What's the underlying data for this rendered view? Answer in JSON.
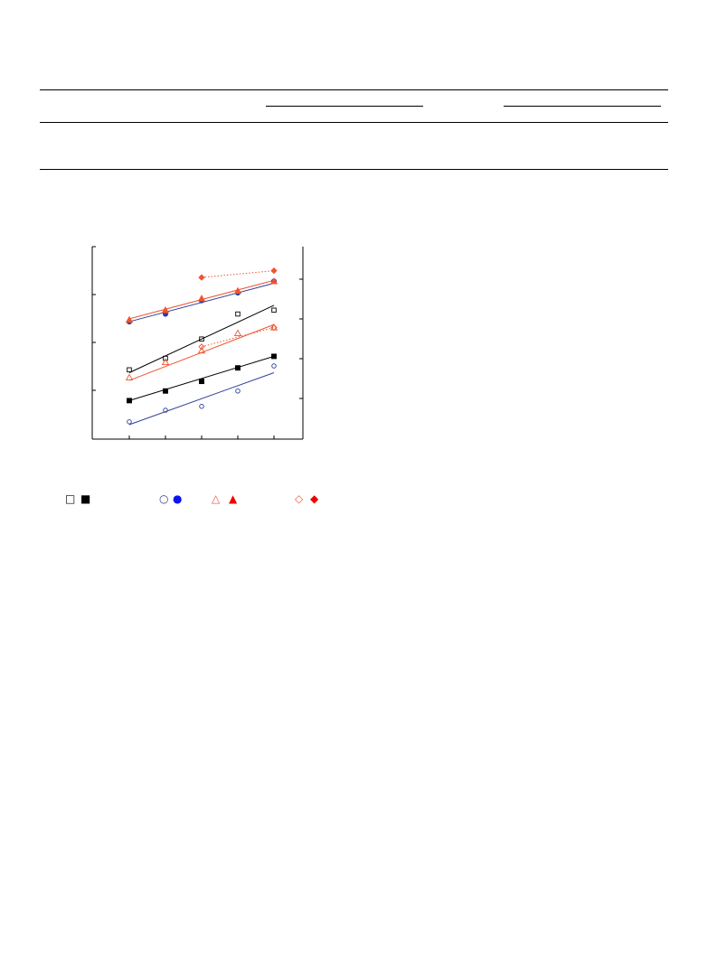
{
  "chart_data": {
    "type": "scatter",
    "x": [
      1,
      2,
      3,
      4,
      5
    ],
    "y_left_ticks": 4,
    "y_right_ticks": 4,
    "x_ticks": 6,
    "series": [
      {
        "marker": "open-square",
        "color": "#000000",
        "axis": "right",
        "points": [
          [
            1,
            0.36
          ],
          [
            2,
            0.42
          ],
          [
            3,
            0.52
          ],
          [
            4,
            0.65
          ],
          [
            5,
            0.67
          ]
        ],
        "fit": [
          [
            1,
            0.345
          ],
          [
            5,
            0.695
          ]
        ],
        "fit_style": "solid"
      },
      {
        "marker": "filled-square",
        "color": "#000000",
        "axis": "right",
        "points": [
          [
            1,
            0.2
          ],
          [
            2,
            0.25
          ],
          [
            3,
            0.3
          ],
          [
            4,
            0.37
          ],
          [
            5,
            0.43
          ]
        ],
        "fit": [
          [
            1,
            0.2
          ],
          [
            5,
            0.43
          ]
        ],
        "fit_style": "solid"
      },
      {
        "marker": "open-circle",
        "color": "#2e3e9a",
        "axis": "right",
        "points": [
          [
            1,
            0.09
          ],
          [
            2,
            0.15
          ],
          [
            3,
            0.17
          ],
          [
            4,
            0.25
          ],
          [
            5,
            0.38
          ]
        ],
        "fit": [
          [
            1,
            0.075
          ],
          [
            5,
            0.345
          ]
        ],
        "fit_style": "solid"
      },
      {
        "marker": "filled-circle",
        "color": "#2e3e9a",
        "axis": "right",
        "points": [
          [
            1,
            0.61
          ],
          [
            2,
            0.65
          ],
          [
            3,
            0.72
          ],
          [
            4,
            0.76
          ],
          [
            5,
            0.82
          ]
        ],
        "fit": [
          [
            1,
            0.61
          ],
          [
            5,
            0.81
          ]
        ],
        "fit_style": "solid"
      },
      {
        "marker": "open-triangle",
        "color": "#ef5430",
        "axis": "right",
        "points": [
          [
            1,
            0.32
          ],
          [
            2,
            0.4
          ],
          [
            3,
            0.46
          ],
          [
            4,
            0.55
          ],
          [
            5,
            0.58
          ]
        ],
        "fit": [
          [
            1,
            0.305
          ],
          [
            5,
            0.595
          ]
        ],
        "fit_style": "solid"
      },
      {
        "marker": "filled-triangle",
        "color": "#ef5430",
        "axis": "right",
        "points": [
          [
            1,
            0.62
          ],
          [
            2,
            0.67
          ],
          [
            3,
            0.73
          ],
          [
            4,
            0.77
          ],
          [
            5,
            0.82
          ]
        ],
        "fit": [
          [
            1,
            0.625
          ],
          [
            5,
            0.825
          ]
        ],
        "fit_style": "solid"
      },
      {
        "marker": "open-diamond",
        "color": "#ef5430",
        "axis": "right",
        "points": [
          [
            3,
            0.48
          ],
          [
            5,
            0.58
          ]
        ],
        "fit": [
          [
            3,
            0.48
          ],
          [
            5,
            0.58
          ]
        ],
        "fit_style": "dotted"
      },
      {
        "marker": "filled-diamond",
        "color": "#ef5430",
        "axis": "right",
        "points": [
          [
            3,
            0.84
          ],
          [
            5,
            0.875
          ]
        ],
        "fit": [
          [
            3,
            0.84
          ],
          [
            5,
            0.875
          ]
        ],
        "fit_style": "dotted"
      }
    ]
  },
  "legend": [
    {
      "open": "open-square-legend",
      "filled": "filled-square-legend",
      "open_glyph": "□",
      "filled_glyph": "■",
      "color": "#000000",
      "open_color": "#000000"
    },
    {
      "open": "open-circle-legend",
      "filled": "filled-circle-legend",
      "open_glyph": "○",
      "filled_glyph": "●",
      "color": "#0a14f0",
      "open_color": "#2e3e9a"
    },
    {
      "open": "open-triangle-legend",
      "filled": "filled-triangle-legend",
      "open_glyph": "△",
      "filled_glyph": "▲",
      "color": "#f00000",
      "open_color": "#ef5430"
    },
    {
      "open": "open-diamond-legend",
      "filled": "filled-diamond-legend",
      "open_glyph": "◇",
      "filled_glyph": "◆",
      "color": "#f00000",
      "open_color": "#ef5430"
    }
  ]
}
